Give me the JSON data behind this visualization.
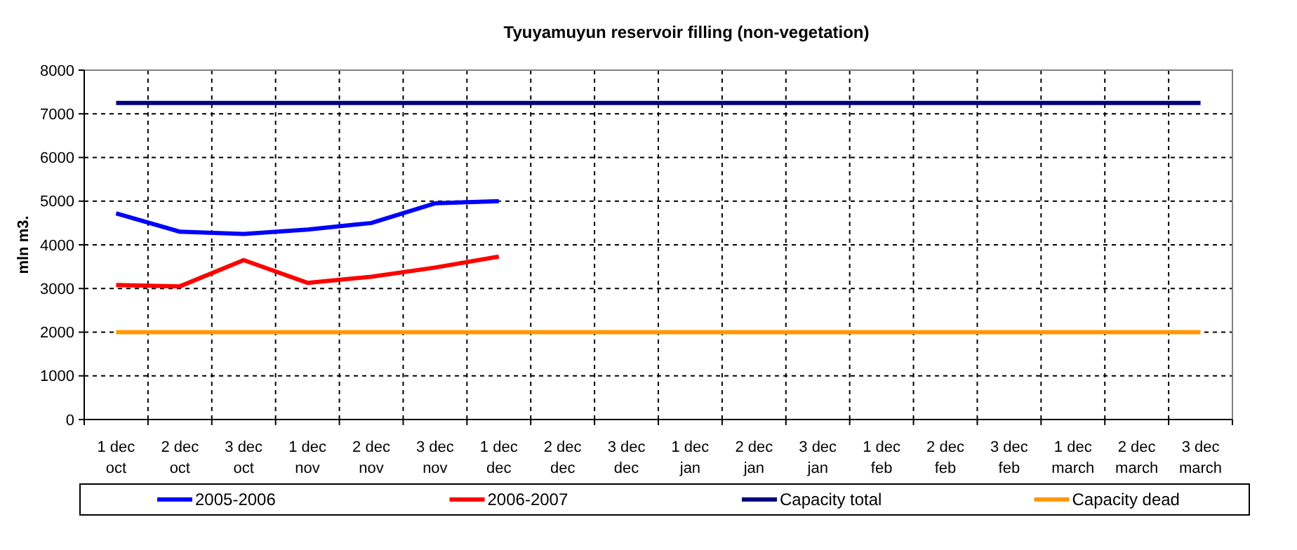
{
  "chart_data": {
    "type": "line",
    "title": "Tyuyamuyun reservoir filling (non-vegetation)",
    "ylabel": "mln m3.",
    "categories": [
      "1 dec\noct",
      "2 dec\noct",
      "3 dec\noct",
      "1 dec\nnov",
      "2 dec\nnov",
      "3 dec\nnov",
      "1 dec\ndec",
      "2 dec\ndec",
      "3 dec\ndec",
      "1 dec\njan",
      "2 dec\njan",
      "3 dec\njan",
      "1 dec\nfeb",
      "2 dec\nfeb",
      "3 dec\nfeb",
      "1 dec\nmarch",
      "2 dec\nmarch",
      "3 dec\nmarch"
    ],
    "series": [
      {
        "name": "2005-2006",
        "color": "#0000ff",
        "values": [
          4720,
          4300,
          4250,
          4350,
          4500,
          4950,
          5000,
          null,
          null,
          null,
          null,
          null,
          null,
          null,
          null,
          null,
          null,
          null
        ]
      },
      {
        "name": "2006-2007",
        "color": "#ff0000",
        "values": [
          3080,
          3050,
          3650,
          3130,
          3270,
          3480,
          3730,
          null,
          null,
          null,
          null,
          null,
          null,
          null,
          null,
          null,
          null,
          null
        ]
      },
      {
        "name": "Capacity total",
        "color": "#000080",
        "values": [
          7250,
          7250,
          7250,
          7250,
          7250,
          7250,
          7250,
          7250,
          7250,
          7250,
          7250,
          7250,
          7250,
          7250,
          7250,
          7250,
          7250,
          7250
        ]
      },
      {
        "name": "Capacity dead",
        "color": "#ff9900",
        "values": [
          2000,
          2000,
          2000,
          2000,
          2000,
          2000,
          2000,
          2000,
          2000,
          2000,
          2000,
          2000,
          2000,
          2000,
          2000,
          2000,
          2000,
          2000
        ]
      }
    ],
    "ylim": [
      0,
      8000
    ],
    "yticks": [
      0,
      1000,
      2000,
      3000,
      4000,
      5000,
      6000,
      7000,
      8000
    ],
    "grid": true,
    "legend": "bottom",
    "marker": "none",
    "line_style": "solid"
  }
}
